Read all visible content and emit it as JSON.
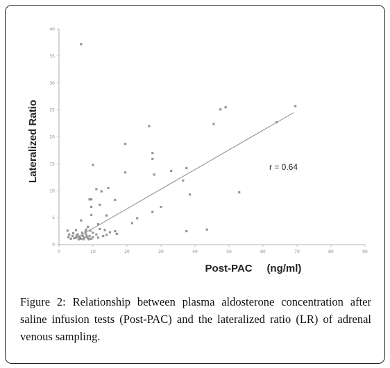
{
  "figure": {
    "caption_label": "Figure 2",
    "caption_text": ": Relationship between plasma aldosterone concentration after saline infusion tests (Post-PAC) and the lateralized ratio (LR) of adrenal venous sampling."
  },
  "chart_data": {
    "type": "scatter",
    "title": "",
    "xlabel": "Post-PAC     (ng/ml)",
    "ylabel": "Lateralized Ratio",
    "xlim": [
      0,
      90
    ],
    "ylim": [
      0,
      40
    ],
    "xticks": [
      0,
      10,
      20,
      30,
      40,
      50,
      60,
      70,
      80,
      90
    ],
    "yticks": [
      0,
      5,
      10,
      15,
      20,
      25,
      30,
      35,
      40
    ],
    "grid": false,
    "annotation": "r = 0.64",
    "colors": {
      "marker": "#8a8a8a",
      "trendline": "#8c8c8c"
    },
    "trendline": {
      "x": [
        5,
        69
      ],
      "y": [
        1.2,
        24.5
      ]
    },
    "points": [
      {
        "x": 6.5,
        "y": 37.2
      },
      {
        "x": 69.5,
        "y": 25.7
      },
      {
        "x": 49,
        "y": 25.5
      },
      {
        "x": 47.5,
        "y": 25.1
      },
      {
        "x": 45.5,
        "y": 22.4
      },
      {
        "x": 64,
        "y": 22.7
      },
      {
        "x": 26.5,
        "y": 22.0
      },
      {
        "x": 19.5,
        "y": 18.7
      },
      {
        "x": 27.5,
        "y": 17.0
      },
      {
        "x": 27.5,
        "y": 15.9
      },
      {
        "x": 10,
        "y": 14.8
      },
      {
        "x": 37.5,
        "y": 14.2
      },
      {
        "x": 33,
        "y": 13.7
      },
      {
        "x": 19.5,
        "y": 13.4
      },
      {
        "x": 28,
        "y": 13.0
      },
      {
        "x": 36.5,
        "y": 11.9
      },
      {
        "x": 11,
        "y": 10.3
      },
      {
        "x": 14.5,
        "y": 10.5
      },
      {
        "x": 12.5,
        "y": 9.9
      },
      {
        "x": 53,
        "y": 9.7
      },
      {
        "x": 38.5,
        "y": 9.3
      },
      {
        "x": 9.5,
        "y": 8.4
      },
      {
        "x": 9,
        "y": 8.4
      },
      {
        "x": 16.5,
        "y": 8.3
      },
      {
        "x": 12,
        "y": 7.4
      },
      {
        "x": 9.5,
        "y": 7.0
      },
      {
        "x": 30,
        "y": 7.0
      },
      {
        "x": 27.5,
        "y": 6.1
      },
      {
        "x": 9.5,
        "y": 5.5
      },
      {
        "x": 14,
        "y": 5.4
      },
      {
        "x": 23,
        "y": 4.9
      },
      {
        "x": 6.5,
        "y": 4.5
      },
      {
        "x": 21.5,
        "y": 4.0
      },
      {
        "x": 11.5,
        "y": 3.8
      },
      {
        "x": 8.5,
        "y": 3.3
      },
      {
        "x": 43.5,
        "y": 2.8
      },
      {
        "x": 2.5,
        "y": 2.6
      },
      {
        "x": 5,
        "y": 2.7
      },
      {
        "x": 8,
        "y": 2.8
      },
      {
        "x": 12,
        "y": 2.9
      },
      {
        "x": 13.5,
        "y": 2.7
      },
      {
        "x": 16.5,
        "y": 2.5
      },
      {
        "x": 37.5,
        "y": 2.5
      },
      {
        "x": 15,
        "y": 2.3
      },
      {
        "x": 17,
        "y": 2.0
      },
      {
        "x": 10,
        "y": 2.2
      },
      {
        "x": 11,
        "y": 1.9
      },
      {
        "x": 14,
        "y": 1.8
      },
      {
        "x": 3,
        "y": 1.9
      },
      {
        "x": 4,
        "y": 1.6
      },
      {
        "x": 5,
        "y": 1.3
      },
      {
        "x": 5.5,
        "y": 1.9
      },
      {
        "x": 6,
        "y": 1.5
      },
      {
        "x": 6.5,
        "y": 1.1
      },
      {
        "x": 7,
        "y": 1.6
      },
      {
        "x": 7.5,
        "y": 1.3
      },
      {
        "x": 8,
        "y": 1.9
      },
      {
        "x": 8.5,
        "y": 1.2
      },
      {
        "x": 9,
        "y": 1.6
      },
      {
        "x": 9.5,
        "y": 1.1
      },
      {
        "x": 10,
        "y": 1.4
      },
      {
        "x": 3.5,
        "y": 1.1
      },
      {
        "x": 4.5,
        "y": 1.2
      },
      {
        "x": 5.8,
        "y": 1.0
      },
      {
        "x": 7.2,
        "y": 1.0
      },
      {
        "x": 8.8,
        "y": 1.0
      },
      {
        "x": 6.8,
        "y": 2.2
      },
      {
        "x": 9.2,
        "y": 2.6
      },
      {
        "x": 4.2,
        "y": 2.1
      },
      {
        "x": 2.8,
        "y": 1.4
      },
      {
        "x": 11.5,
        "y": 1.3
      },
      {
        "x": 13,
        "y": 1.6
      },
      {
        "x": 7.8,
        "y": 2.4
      },
      {
        "x": 5.2,
        "y": 1.7
      },
      {
        "x": 6.2,
        "y": 1.2
      },
      {
        "x": 8.2,
        "y": 1.5
      }
    ]
  }
}
